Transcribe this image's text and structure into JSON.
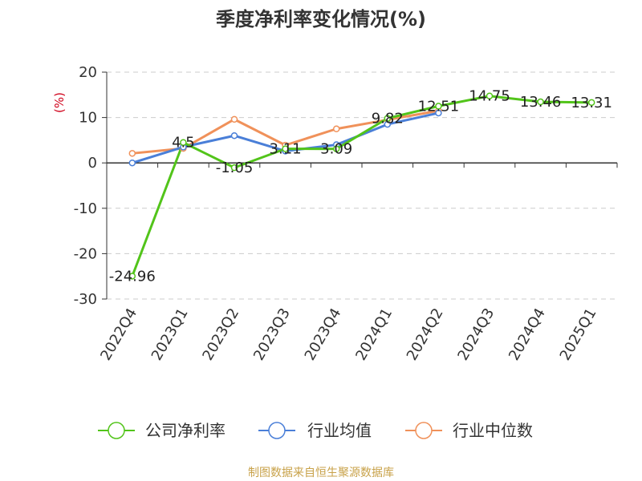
{
  "chart_data": {
    "type": "line",
    "title": "季度净利率变化情况(%)",
    "ylabel": "(%)",
    "xlabel": "",
    "categories": [
      "2022Q4",
      "2023Q1",
      "2023Q2",
      "2023Q3",
      "2023Q4",
      "2024Q1",
      "2024Q2",
      "2024Q3",
      "2024Q4",
      "2025Q1"
    ],
    "ylim": [
      -30,
      20
    ],
    "yticks": [
      "20",
      "10",
      "0",
      "-10",
      "-20",
      "-30"
    ],
    "grid": "horizontal dashed",
    "legend_position": "bottom",
    "series": [
      {
        "name": "公司净利率",
        "color": "#52c41a",
        "values": [
          -24.96,
          4.5,
          -1.05,
          3.11,
          3.09,
          9.82,
          12.51,
          14.75,
          13.46,
          13.31
        ],
        "labels": [
          "-24.96",
          "4.5",
          "-1.05",
          "3.11",
          "3.09",
          "9.82",
          "12.51",
          "14.75",
          "13.46",
          "13.31"
        ]
      },
      {
        "name": "行业均值",
        "color": "#4a7fd8",
        "values": [
          0.0,
          3.5,
          6.0,
          2.6,
          4.0,
          8.5,
          11.0,
          null,
          null,
          null
        ]
      },
      {
        "name": "行业中位数",
        "color": "#f0915a",
        "values": [
          2.1,
          3.2,
          9.6,
          3.9,
          7.5,
          9.5,
          11.5,
          null,
          null,
          null
        ]
      }
    ]
  },
  "source": "制图数据来自恒生聚源数据库"
}
